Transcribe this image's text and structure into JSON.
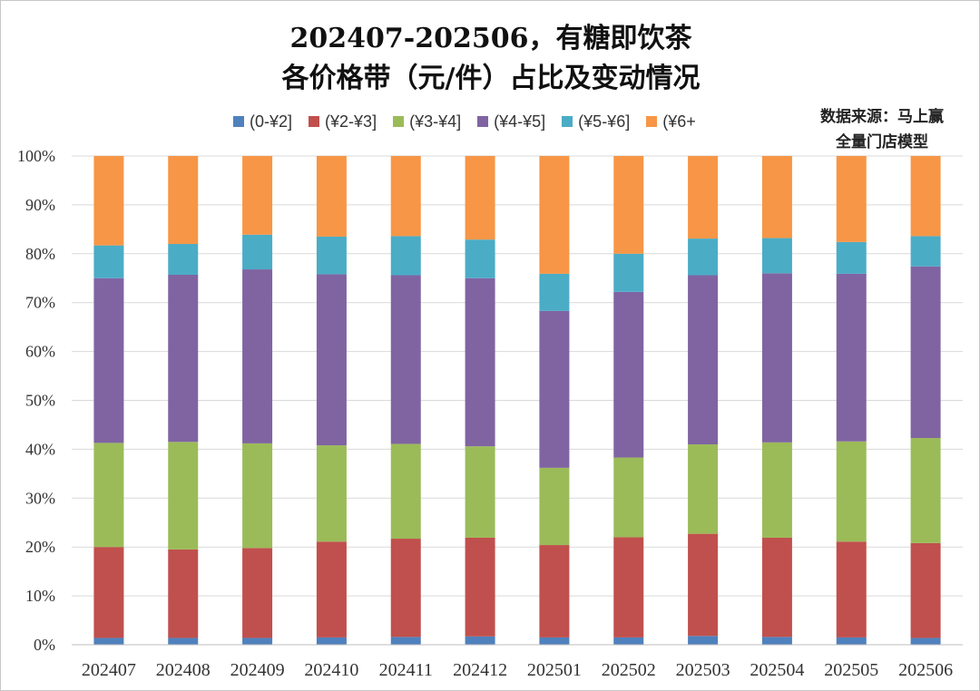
{
  "chart_data": {
    "type": "bar",
    "stacked": true,
    "title": "202407-202506，有糖即饮茶",
    "subtitle": "各价格带（元/件）占比及变动情况",
    "source_line1": "数据来源：马上赢",
    "source_line2": "全量门店模型",
    "categories": [
      "202407",
      "202408",
      "202409",
      "202410",
      "202411",
      "202412",
      "202501",
      "202502",
      "202503",
      "202504",
      "202505",
      "202506"
    ],
    "y_ticks": [
      "0%",
      "10%",
      "20%",
      "30%",
      "40%",
      "50%",
      "60%",
      "70%",
      "80%",
      "90%",
      "100%"
    ],
    "ylim": [
      0,
      100
    ],
    "grid": true,
    "legend_position": "top",
    "series": [
      {
        "name": "(0-¥2]",
        "color": "#4f81bd",
        "values": [
          1.4,
          1.4,
          1.4,
          1.5,
          1.6,
          1.7,
          1.5,
          1.5,
          1.8,
          1.6,
          1.5,
          1.4
        ]
      },
      {
        "name": "(¥2-¥3]",
        "color": "#c0504d",
        "values": [
          18.6,
          18.1,
          18.4,
          19.6,
          20.1,
          20.2,
          18.9,
          20.5,
          20.9,
          20.3,
          19.6,
          19.4
        ]
      },
      {
        "name": "(¥3-¥4]",
        "color": "#9bbb59",
        "values": [
          21.3,
          22.0,
          21.4,
          19.7,
          19.4,
          18.7,
          15.8,
          16.3,
          18.3,
          19.5,
          20.5,
          21.5
        ]
      },
      {
        "name": "(¥4-¥5]",
        "color": "#8064a2",
        "values": [
          33.7,
          34.2,
          35.6,
          35.0,
          34.5,
          34.4,
          32.1,
          33.9,
          34.6,
          34.6,
          34.3,
          35.1
        ]
      },
      {
        "name": "(¥5-¥6]",
        "color": "#4bacc6",
        "values": [
          6.7,
          6.3,
          7.1,
          7.7,
          8.0,
          7.9,
          7.6,
          7.8,
          7.5,
          7.2,
          6.5,
          6.2
        ]
      },
      {
        "name": "(¥6+",
        "color": "#f79646",
        "values": [
          18.3,
          18.0,
          16.1,
          16.5,
          16.4,
          17.1,
          24.1,
          20.0,
          16.9,
          16.8,
          17.6,
          16.4
        ]
      }
    ]
  }
}
